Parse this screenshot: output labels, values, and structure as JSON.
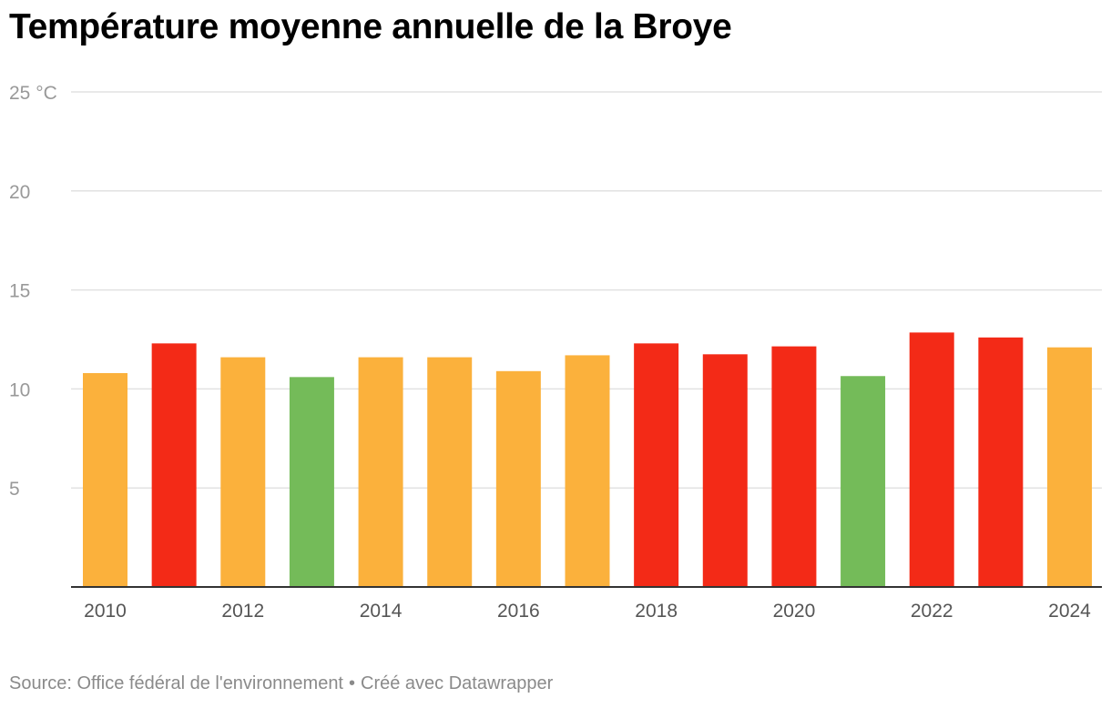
{
  "chart_data": {
    "type": "bar",
    "title": "Température moyenne annuelle de la Broye",
    "y_unit_label": "25 °C",
    "y_ticks": [
      5,
      10,
      15,
      20,
      25
    ],
    "y_tick_labels": [
      "5",
      "10",
      "15",
      "20",
      "25 °C"
    ],
    "ylim": [
      0,
      25
    ],
    "x_tick_labels": [
      "2010",
      "2012",
      "2014",
      "2016",
      "2018",
      "2020",
      "2022",
      "2024"
    ],
    "categories": [
      "2010",
      "2011",
      "2012",
      "2013",
      "2014",
      "2015",
      "2016",
      "2017",
      "2018",
      "2019",
      "2020",
      "2021",
      "2022",
      "2023",
      "2024"
    ],
    "values": [
      10.8,
      12.3,
      11.6,
      10.6,
      11.6,
      11.6,
      10.9,
      11.7,
      12.3,
      11.75,
      12.15,
      10.65,
      12.85,
      12.6,
      12.1
    ],
    "colors": [
      "#fbb13c",
      "#f32a17",
      "#fbb13c",
      "#74bb59",
      "#fbb13c",
      "#fbb13c",
      "#fbb13c",
      "#fbb13c",
      "#f32a17",
      "#f32a17",
      "#f32a17",
      "#74bb59",
      "#f32a17",
      "#f32a17",
      "#fbb13c"
    ],
    "grid": true
  },
  "footer": {
    "source": "Source: Office fédéral de l'environnement",
    "separator": "•",
    "credit": "Créé avec Datawrapper"
  }
}
